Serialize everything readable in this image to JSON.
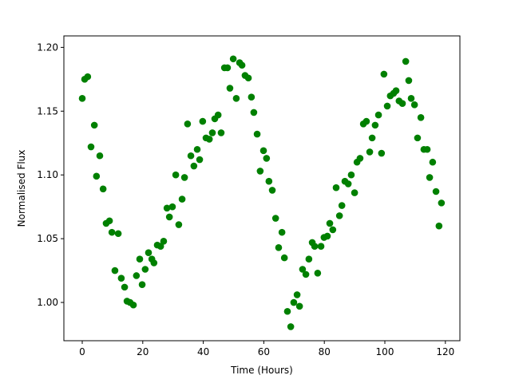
{
  "chart_data": {
    "type": "scatter",
    "xlabel": "Time (Hours)",
    "ylabel": "Normalised Flux",
    "color": "#008000",
    "x": [
      0,
      0.8,
      1.8,
      2.9,
      4.0,
      4.7,
      5.8,
      6.9,
      7.9,
      9.0,
      9.8,
      10.8,
      11.9,
      12.9,
      14.0,
      14.8,
      15.8,
      16.9,
      17.9,
      19.0,
      19.8,
      20.8,
      21.9,
      23.0,
      23.7,
      24.8,
      25.9,
      26.9,
      28.0,
      28.8,
      29.8,
      30.9,
      31.9,
      33.0,
      33.8,
      34.8,
      35.9,
      36.9,
      38.0,
      38.8,
      39.8,
      40.9,
      42.0,
      43.0,
      43.8,
      44.9,
      45.9,
      47.0,
      48.0,
      48.8,
      49.9,
      50.9,
      52.0,
      52.8,
      53.8,
      54.9,
      55.9,
      56.7,
      57.8,
      58.8,
      59.9,
      60.9,
      61.7,
      62.8,
      63.9,
      64.9,
      66.0,
      66.8,
      67.8,
      68.9,
      69.9,
      71.0,
      71.8,
      72.8,
      73.9,
      74.9,
      76.0,
      76.8,
      77.8,
      78.9,
      79.9,
      81.0,
      81.8,
      82.8,
      83.9,
      85.0,
      85.8,
      86.8,
      87.9,
      88.9,
      90.0,
      90.8,
      91.8,
      92.9,
      93.9,
      95.0,
      95.8,
      96.8,
      97.9,
      98.9,
      99.7,
      100.8,
      101.8,
      102.9,
      103.7,
      104.7,
      105.8,
      106.9,
      107.9,
      108.7,
      109.8,
      110.8,
      111.9,
      112.9,
      114.0,
      114.8,
      115.8,
      116.9,
      117.9,
      118.7
    ],
    "values": [
      1.16,
      1.175,
      1.177,
      1.122,
      1.139,
      1.099,
      1.115,
      1.089,
      1.062,
      1.064,
      1.055,
      1.025,
      1.054,
      1.019,
      1.012,
      1.001,
      1.0,
      0.998,
      1.021,
      1.034,
      1.014,
      1.026,
      1.039,
      1.034,
      1.031,
      1.045,
      1.044,
      1.048,
      1.074,
      1.067,
      1.075,
      1.1,
      1.061,
      1.081,
      1.098,
      1.14,
      1.115,
      1.107,
      1.12,
      1.112,
      1.142,
      1.129,
      1.128,
      1.133,
      1.144,
      1.147,
      1.133,
      1.184,
      1.184,
      1.168,
      1.191,
      1.16,
      1.188,
      1.186,
      1.178,
      1.176,
      1.161,
      1.149,
      1.132,
      1.103,
      1.119,
      1.113,
      1.095,
      1.088,
      1.066,
      1.043,
      1.055,
      1.035,
      0.993,
      0.981,
      1.0,
      1.006,
      0.997,
      1.026,
      1.022,
      1.034,
      1.047,
      1.044,
      1.023,
      1.044,
      1.051,
      1.052,
      1.062,
      1.057,
      1.09,
      1.068,
      1.076,
      1.095,
      1.093,
      1.1,
      1.086,
      1.11,
      1.113,
      1.14,
      1.142,
      1.118,
      1.129,
      1.139,
      1.147,
      1.117,
      1.179,
      1.154,
      1.162,
      1.164,
      1.166,
      1.158,
      1.156,
      1.189,
      1.174,
      1.16,
      1.155,
      1.129,
      1.145,
      1.12,
      1.12,
      1.098,
      1.11,
      1.087,
      1.06,
      1.078
    ],
    "xlim": [
      -6.07,
      124.8
    ],
    "xticks": [
      0,
      20,
      40,
      60,
      80,
      100,
      120
    ],
    "ylim": [
      0.97,
      1.209
    ],
    "yticks": [
      {
        "value": 1.0,
        "label": "1.00"
      },
      {
        "value": 1.05,
        "label": "1.05"
      },
      {
        "value": 1.1,
        "label": "1.10"
      },
      {
        "value": 1.15,
        "label": "1.15"
      },
      {
        "value": 1.2,
        "label": "1.20"
      }
    ]
  }
}
